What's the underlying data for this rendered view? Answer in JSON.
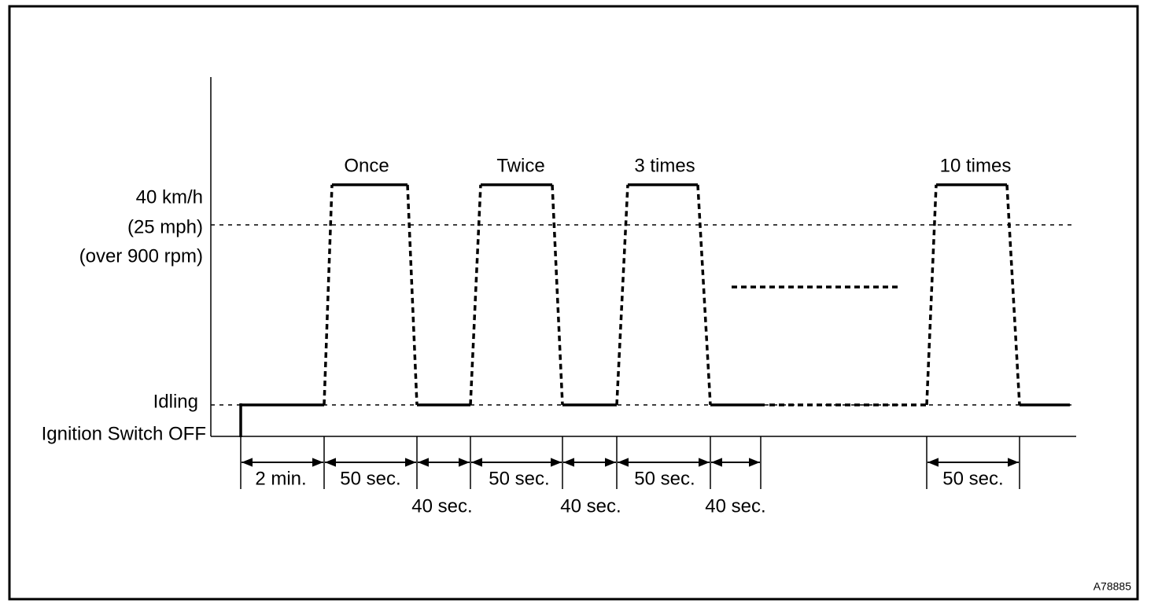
{
  "y_labels": {
    "speed": [
      "40 km/h",
      "(25 mph)",
      "(over 900 rpm)"
    ],
    "idling": "Idling",
    "ignition_off": "Ignition Switch OFF"
  },
  "cycle_labels": [
    "Once",
    "Twice",
    "3 times",
    "10 times"
  ],
  "durations": [
    "2 min.",
    "50 sec.",
    "40 sec.",
    "50 sec.",
    "40 sec.",
    "50 sec.",
    "40 sec.",
    "50 sec."
  ],
  "figure_id": "A78885"
}
